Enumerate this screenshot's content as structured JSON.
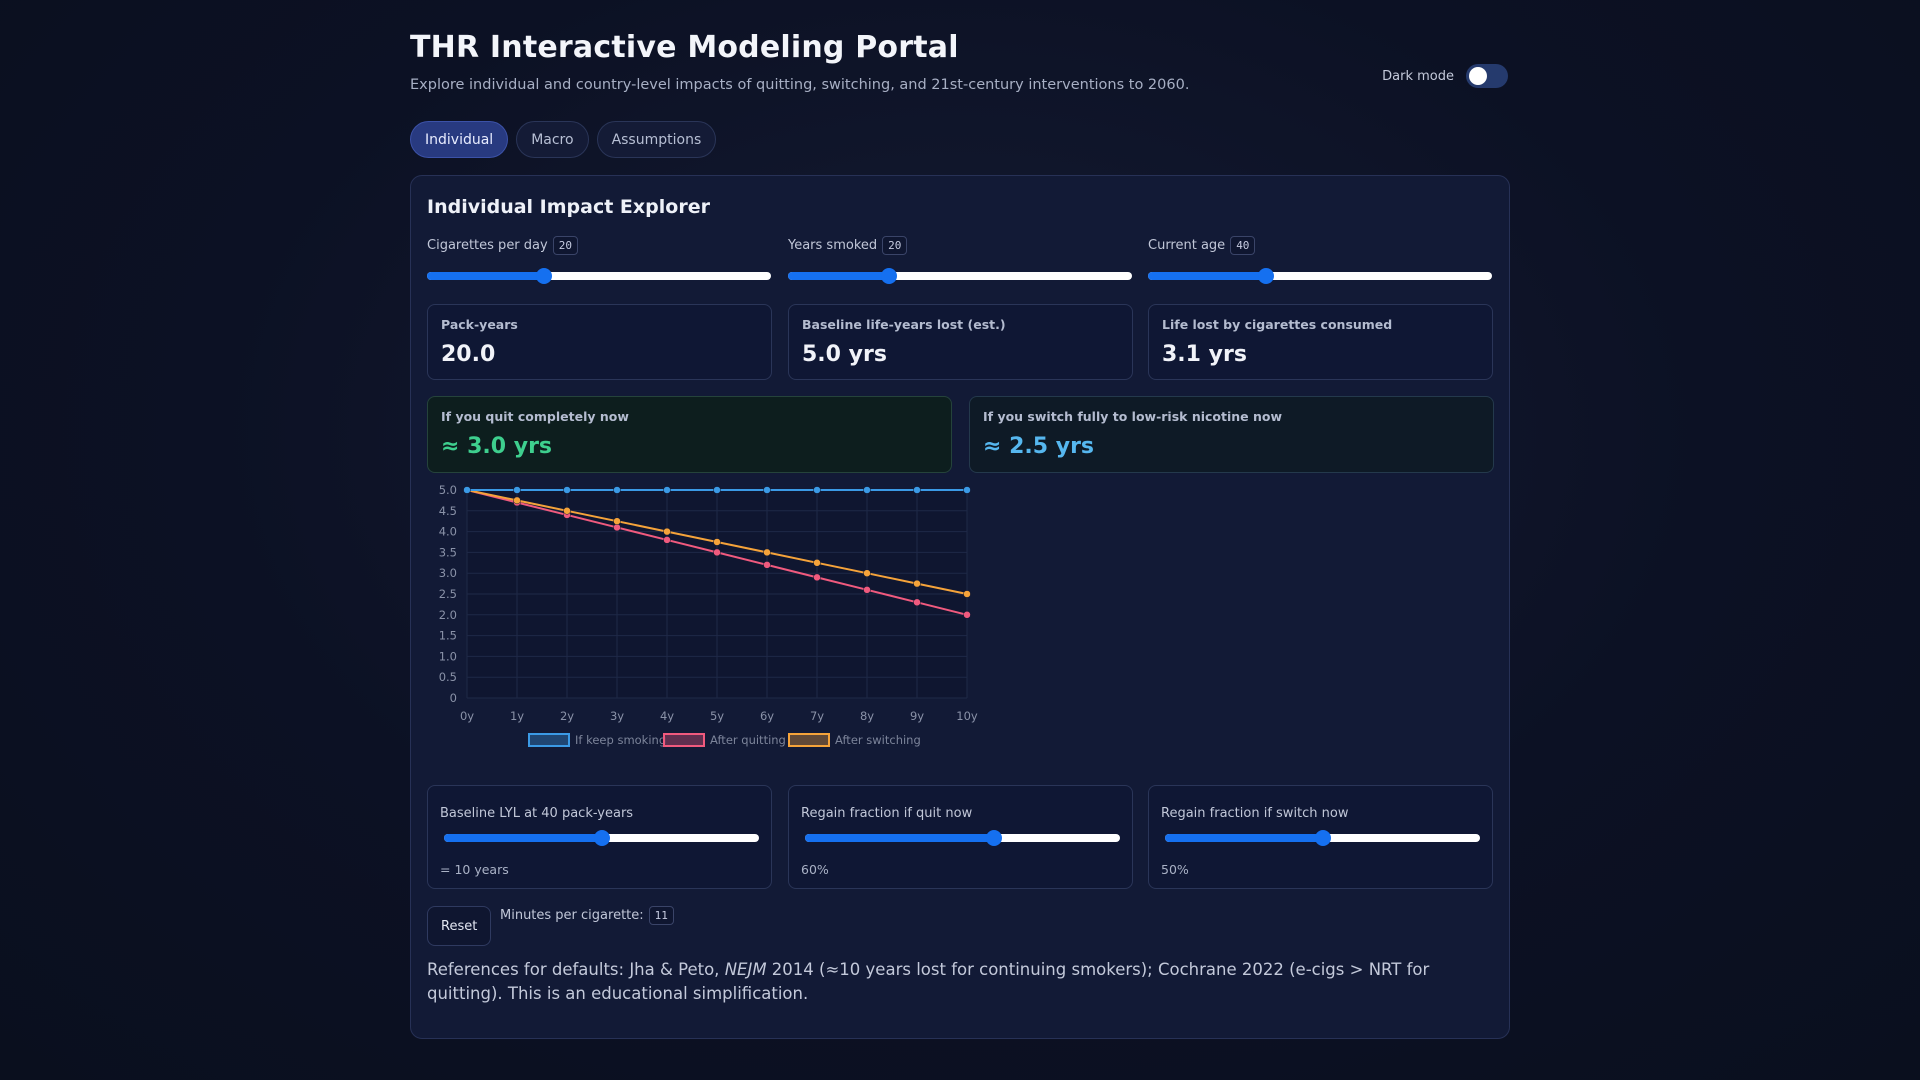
{
  "header": {
    "title": "THR Interactive Modeling Portal",
    "subtitle": "Explore individual and country-level impacts of quitting, switching, and 21st-century interventions to 2060.",
    "dark_mode_label": "Dark mode",
    "dark_mode_on": false
  },
  "tabs": [
    {
      "label": "Individual",
      "active": true
    },
    {
      "label": "Macro",
      "active": false
    },
    {
      "label": "Assumptions",
      "active": false
    }
  ],
  "panel": {
    "title": "Individual Impact Explorer",
    "sliders": [
      {
        "label": "Cigarettes per day",
        "value": "20",
        "fraction": 0.34
      },
      {
        "label": "Years smoked",
        "value": "20",
        "fraction": 0.295
      },
      {
        "label": "Current age",
        "value": "40",
        "fraction": 0.342
      }
    ],
    "stats": [
      {
        "label": "Pack-years",
        "value": "20.0"
      },
      {
        "label": "Baseline life-years lost (est.)",
        "value": "5.0 yrs"
      },
      {
        "label": "Life lost by cigarettes consumed",
        "value": "3.1 yrs"
      }
    ],
    "outcomes": {
      "quit": {
        "label": "If you quit completely now",
        "value": "≈ 3.0 yrs"
      },
      "switch": {
        "label": "If you switch fully to low-risk nicotine now",
        "value": "≈ 2.5 yrs"
      }
    },
    "controls": [
      {
        "label": "Baseline LYL at 40 pack-years",
        "note": "= 10 years",
        "fraction": 0.5
      },
      {
        "label": "Regain fraction if quit now",
        "note": "60%",
        "fraction": 0.6
      },
      {
        "label": "Regain fraction if switch now",
        "note": "50%",
        "fraction": 0.5
      }
    ],
    "reset_label": "Reset",
    "minutes_label": "Minutes per cigarette:",
    "minutes_value": "11",
    "refs": {
      "prefix": "References for defaults: Jha & Peto, ",
      "journal": "NEJM",
      "suffix": " 2014 (≈10 years lost for continuing smokers); Cochrane 2022 (e-cigs > NRT for quitting). This is an educational simplification."
    }
  },
  "colors": {
    "keep": "#3b9ae6",
    "quit": "#f05a7e",
    "switch": "#f5a33a",
    "accent": "#1570f0"
  },
  "chart_data": {
    "type": "line",
    "categories": [
      "0y",
      "1y",
      "2y",
      "3y",
      "4y",
      "5y",
      "6y",
      "7y",
      "8y",
      "9y",
      "10y"
    ],
    "yticks": [
      "0",
      "0.5",
      "1.0",
      "1.5",
      "2.0",
      "2.5",
      "3.0",
      "3.5",
      "4.0",
      "4.5",
      "5.0"
    ],
    "ylim": [
      0,
      5
    ],
    "grid": true,
    "legend_position": "bottom",
    "series": [
      {
        "name": "If keep smoking",
        "values": [
          5.0,
          5.0,
          5.0,
          5.0,
          5.0,
          5.0,
          5.0,
          5.0,
          5.0,
          5.0,
          5.0
        ]
      },
      {
        "name": "After quitting",
        "values": [
          5.0,
          4.7,
          4.4,
          4.1,
          3.8,
          3.5,
          3.2,
          2.9,
          2.6,
          2.3,
          2.0
        ]
      },
      {
        "name": "After switching",
        "values": [
          5.0,
          4.75,
          4.5,
          4.25,
          4.0,
          3.75,
          3.5,
          3.25,
          3.0,
          2.75,
          2.5
        ]
      }
    ]
  }
}
